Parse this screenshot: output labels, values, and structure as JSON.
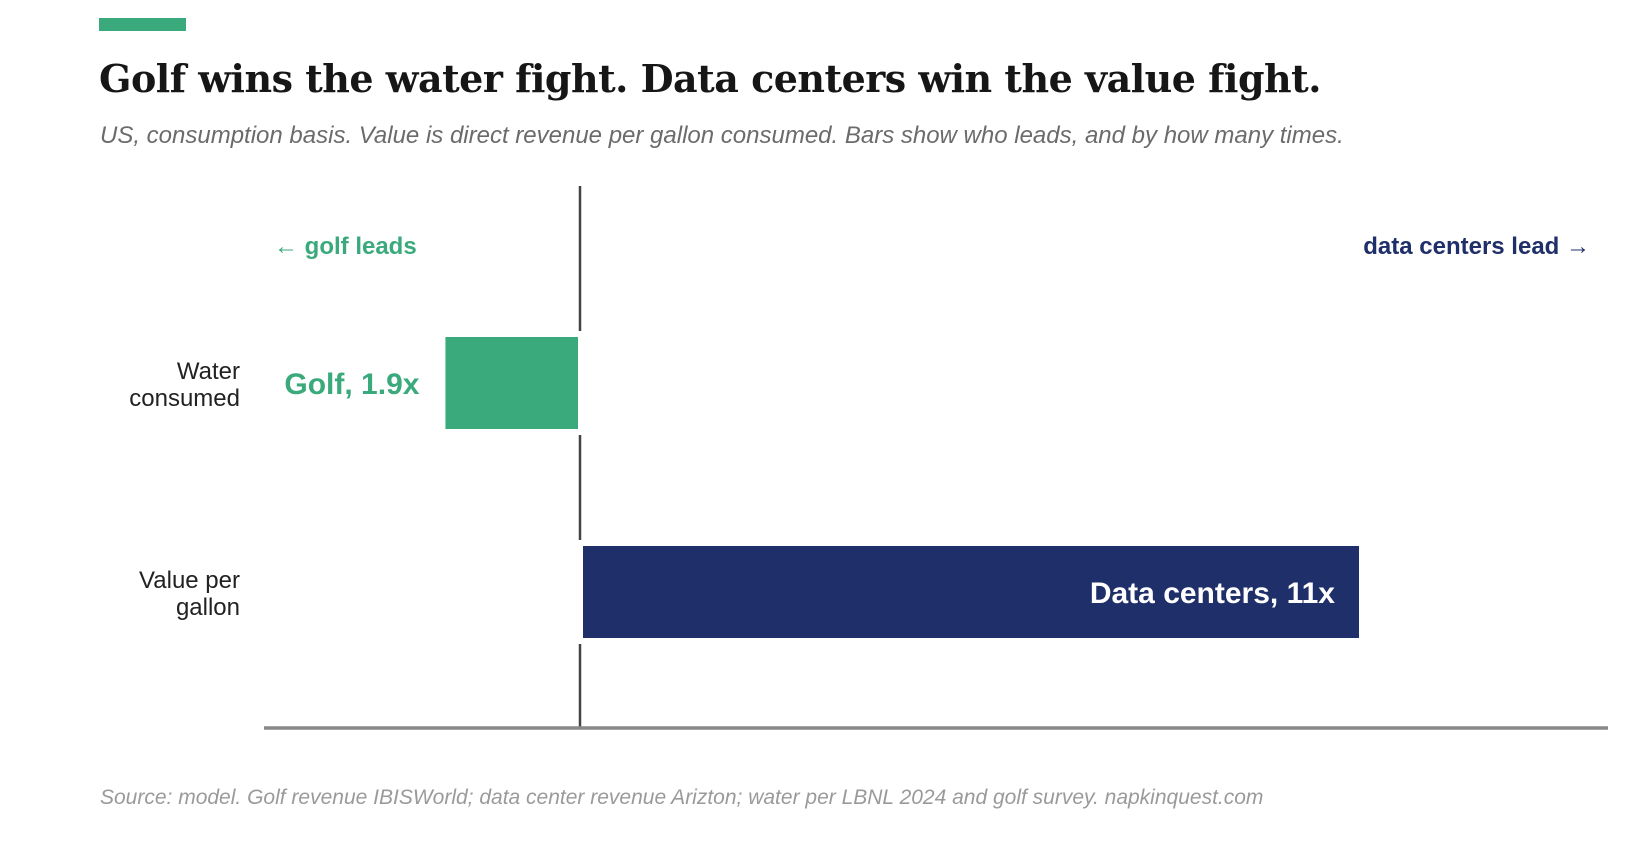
{
  "header": {
    "title": "Golf wins the water fight. Data centers win the value fight.",
    "subtitle": "US, consumption basis. Value is direct revenue per gallon consumed. Bars show who leads, and by how many times."
  },
  "chart_data": {
    "type": "bar",
    "orientation": "horizontal-diverging",
    "categories": [
      [
        "Water",
        "consumed"
      ],
      [
        "Value per",
        "gallon"
      ]
    ],
    "values": [
      -1.9,
      11
    ],
    "bar_labels": [
      "Golf, 1.9x",
      "Data centers, 11x"
    ],
    "direction_labels": {
      "left": "← golf leads",
      "right": "data centers lead →"
    },
    "xlim": [
      -4,
      13.5
    ],
    "grid": false,
    "colors": {
      "golf": "#3aaa7c",
      "data_centers": "#1f2f69",
      "axis": "#888888",
      "zero_line": "#444444",
      "category_text": "#222222"
    }
  },
  "footer": {
    "source": "Source: model. Golf revenue IBISWorld; data center revenue Arizton; water per LBNL 2024 and golf survey. napkinquest.com"
  }
}
